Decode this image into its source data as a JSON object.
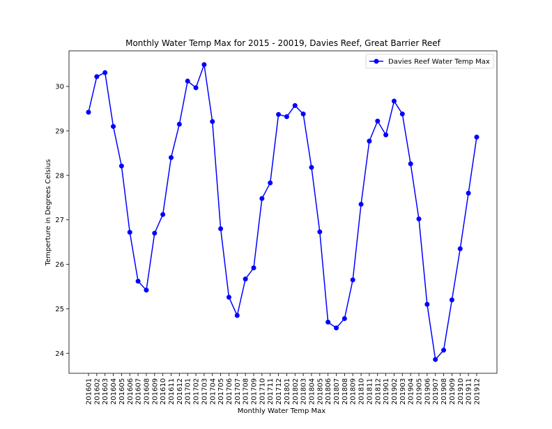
{
  "chart_data": {
    "type": "line",
    "title": "Monthly Water Temp Max for 2015 - 20019, Davies Reef, Great Barrier Reef",
    "xlabel": "Monthly Water Temp Max",
    "ylabel": "Temperture in Degrees Celsius",
    "categories": [
      "201601",
      "201602",
      "201603",
      "201604",
      "201605",
      "201606",
      "201607",
      "201608",
      "201609",
      "201610",
      "201611",
      "201612",
      "201701",
      "201702",
      "201703",
      "201704",
      "201705",
      "201706",
      "201707",
      "201708",
      "201709",
      "201710",
      "201711",
      "201712",
      "201801",
      "201802",
      "201803",
      "201804",
      "201805",
      "201806",
      "201807",
      "201808",
      "201809",
      "201810",
      "201811",
      "201812",
      "201901",
      "201902",
      "201903",
      "201904",
      "201905",
      "201906",
      "201907",
      "201908",
      "201909",
      "201910",
      "201911",
      "201912"
    ],
    "series": [
      {
        "name": "Davies Reef Water Temp Max",
        "color": "#0000ff",
        "values": [
          29.42,
          30.22,
          30.31,
          29.1,
          28.21,
          26.72,
          25.62,
          25.42,
          26.7,
          27.12,
          28.4,
          29.15,
          30.12,
          29.97,
          30.49,
          29.21,
          26.8,
          25.26,
          24.85,
          25.67,
          25.92,
          27.48,
          27.83,
          29.37,
          29.32,
          29.57,
          29.38,
          28.18,
          26.73,
          24.7,
          24.57,
          24.78,
          25.65,
          27.35,
          28.77,
          29.22,
          28.91,
          29.67,
          29.38,
          28.26,
          27.02,
          25.1,
          23.86,
          24.07,
          25.2,
          26.35,
          27.6,
          28.86
        ]
      }
    ],
    "yticks": [
      24,
      25,
      26,
      27,
      28,
      29,
      30
    ],
    "ylim": [
      23.55,
      30.8
    ],
    "grid": false,
    "legend_position": "top-right"
  }
}
